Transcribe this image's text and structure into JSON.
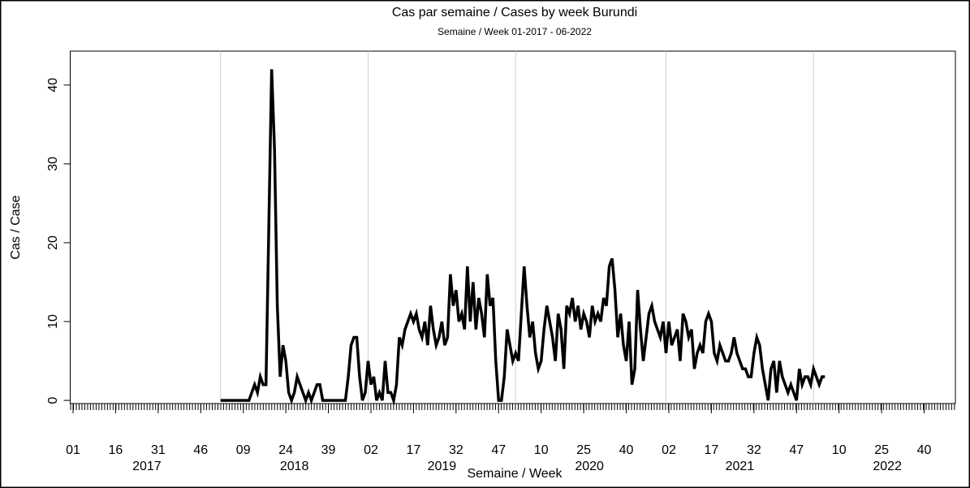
{
  "chart_data": {
    "type": "line",
    "title": "Cas par semaine / Cases by week Burundi",
    "subtitle": "Semaine / Week 01-2017 - 06-2022",
    "xlabel": "Semaine / Week",
    "ylabel": "Cas / Case",
    "xlim": [
      -1,
      311
    ],
    "ylim": [
      -0.4,
      44.3
    ],
    "yticks": [
      0,
      10,
      20,
      30,
      40
    ],
    "xticks": [
      {
        "value": 0,
        "label": "01"
      },
      {
        "value": 15,
        "label": "16"
      },
      {
        "value": 30,
        "label": "31"
      },
      {
        "value": 45,
        "label": "46"
      },
      {
        "value": 60,
        "label": "09"
      },
      {
        "value": 75,
        "label": "24"
      },
      {
        "value": 90,
        "label": "39"
      },
      {
        "value": 105,
        "label": "02"
      },
      {
        "value": 120,
        "label": "17"
      },
      {
        "value": 135,
        "label": "32"
      },
      {
        "value": 150,
        "label": "47"
      },
      {
        "value": 165,
        "label": "10"
      },
      {
        "value": 180,
        "label": "25"
      },
      {
        "value": 195,
        "label": "40"
      },
      {
        "value": 210,
        "label": "02"
      },
      {
        "value": 225,
        "label": "17"
      },
      {
        "value": 240,
        "label": "32"
      },
      {
        "value": 255,
        "label": "47"
      },
      {
        "value": 270,
        "label": "10"
      },
      {
        "value": 285,
        "label": "25"
      },
      {
        "value": 300,
        "label": "40"
      }
    ],
    "year_ticks": [
      {
        "value": 26,
        "label": "2017"
      },
      {
        "value": 78,
        "label": "2018"
      },
      {
        "value": 130,
        "label": "2019"
      },
      {
        "value": 182,
        "label": "2020"
      },
      {
        "value": 235,
        "label": "2021"
      },
      {
        "value": 287,
        "label": "2022"
      }
    ],
    "xgrid": [
      52,
      104,
      156,
      209,
      261
    ],
    "color": "#000000",
    "x": [
      52,
      53,
      54,
      55,
      56,
      57,
      58,
      59,
      60,
      61,
      62,
      63,
      64,
      65,
      66,
      67,
      68,
      69,
      70,
      71,
      72,
      73,
      74,
      75,
      76,
      77,
      78,
      79,
      80,
      81,
      82,
      83,
      84,
      85,
      86,
      87,
      88,
      89,
      90,
      91,
      92,
      93,
      94,
      95,
      96,
      97,
      98,
      99,
      100,
      101,
      102,
      103,
      104,
      105,
      106,
      107,
      108,
      109,
      110,
      111,
      112,
      113,
      114,
      115,
      116,
      117,
      118,
      119,
      120,
      121,
      122,
      123,
      124,
      125,
      126,
      127,
      128,
      129,
      130,
      131,
      132,
      133,
      134,
      135,
      136,
      137,
      138,
      139,
      140,
      141,
      142,
      143,
      144,
      145,
      146,
      147,
      148,
      149,
      150,
      151,
      152,
      153,
      154,
      155,
      156,
      157,
      158,
      159,
      160,
      161,
      162,
      163,
      164,
      165,
      166,
      167,
      168,
      169,
      170,
      171,
      172,
      173,
      174,
      175,
      176,
      177,
      178,
      179,
      180,
      181,
      182,
      183,
      184,
      185,
      186,
      187,
      188,
      189,
      190,
      191,
      192,
      193,
      194,
      195,
      196,
      197,
      198,
      199,
      200,
      201,
      202,
      203,
      204,
      205,
      206,
      207,
      208,
      209,
      210,
      211,
      212,
      213,
      214,
      215,
      216,
      217,
      218,
      219,
      220,
      221,
      222,
      223,
      224,
      225,
      226,
      227,
      228,
      229,
      230,
      231,
      232,
      233,
      234,
      235,
      236,
      237,
      238,
      239,
      240,
      241,
      242,
      243,
      244,
      245,
      246,
      247,
      248,
      249,
      250,
      251,
      252,
      253,
      254,
      255,
      256,
      257,
      258,
      259,
      260,
      261,
      262,
      263,
      264,
      265
    ],
    "values": [
      0,
      0,
      0,
      0,
      0,
      0,
      0,
      0,
      0,
      0,
      0,
      1,
      2,
      1,
      3,
      2,
      2,
      22,
      42,
      32,
      12,
      3,
      7,
      5,
      1,
      0,
      1,
      3,
      2,
      1,
      0,
      1,
      0,
      1,
      2,
      2,
      0,
      0,
      0,
      0,
      0,
      0,
      0,
      0,
      0,
      3,
      7,
      8,
      8,
      3,
      0,
      1,
      5,
      2,
      3,
      0,
      1,
      0,
      5,
      1,
      1,
      0,
      2,
      8,
      7,
      9,
      10,
      11,
      10,
      11,
      9,
      8,
      10,
      7,
      12,
      9,
      7,
      8,
      10,
      7,
      8,
      16,
      12,
      14,
      10,
      11,
      9,
      17,
      10,
      15,
      9,
      13,
      11,
      8,
      16,
      12,
      13,
      5,
      0,
      0,
      3,
      9,
      7,
      5,
      6,
      5,
      11,
      17,
      12,
      8,
      10,
      6,
      4,
      5,
      9,
      12,
      10,
      8,
      5,
      11,
      9,
      4,
      12,
      11,
      13,
      10,
      12,
      9,
      11,
      10,
      8,
      12,
      10,
      11,
      10,
      13,
      12,
      17,
      18,
      14,
      8,
      11,
      7,
      5,
      10,
      2,
      4,
      14,
      9,
      5,
      8,
      11,
      12,
      10,
      9,
      8,
      10,
      6,
      10,
      7,
      8,
      9,
      5,
      11,
      10,
      8,
      9,
      4,
      6,
      7,
      6,
      10,
      11,
      10,
      6,
      5,
      7,
      6,
      5,
      5,
      6,
      8,
      6,
      5,
      4,
      4,
      3,
      3,
      6,
      8,
      7,
      4,
      2,
      0,
      4,
      5,
      1,
      5,
      3,
      2,
      1,
      2,
      1,
      0,
      4,
      2,
      3,
      3,
      2,
      4,
      3,
      2,
      3,
      3
    ]
  }
}
